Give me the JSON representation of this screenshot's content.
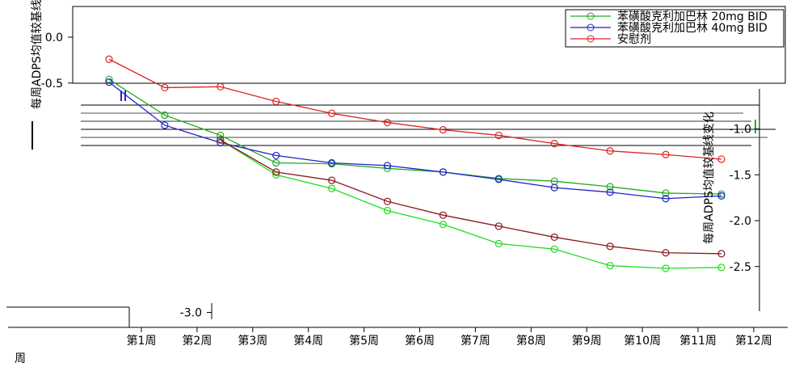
{
  "chart_data": {
    "type": "line",
    "title": "",
    "xlabel": "周",
    "ylabel": "每周ADPS均值较基线变化",
    "ylim": [
      -3.0,
      0.35
    ],
    "yticks": [
      0.0,
      -0.5,
      -1.0,
      -1.5,
      -2.0,
      -2.5,
      -3.0
    ],
    "ytick_labels": [
      "0.0",
      "-0.5",
      "-1.0",
      "-1.5",
      "-2.0",
      "-2.5",
      "-3.0"
    ],
    "legend_position": "top-right",
    "series": [
      {
        "name": "苯磺酸克利加巴林 20mg BID",
        "color": "#22aa22",
        "x": [
          1,
          2,
          3,
          4,
          5,
          6,
          7,
          8,
          9,
          10,
          11,
          12
        ],
        "values": [
          -0.46,
          -0.85,
          -1.07,
          -1.37,
          -1.38,
          -1.43,
          -1.47,
          -1.54,
          -1.57,
          -1.63,
          -1.7,
          -1.71
        ]
      },
      {
        "name": "苯磺酸克利加巴林 40mg BID",
        "color": "#2222cc",
        "x": [
          1,
          2,
          3,
          4,
          5,
          6,
          7,
          8,
          9,
          10,
          11,
          12
        ],
        "values": [
          -0.49,
          -0.96,
          -1.15,
          -1.29,
          -1.37,
          -1.4,
          -1.47,
          -1.55,
          -1.64,
          -1.69,
          -1.76,
          -1.73
        ]
      },
      {
        "name": "安慰剂",
        "color": "#dd2222",
        "x": [
          1,
          2,
          3,
          4,
          5,
          6,
          7,
          8,
          9,
          10,
          11,
          12
        ],
        "values": [
          -0.24,
          -0.55,
          -0.54,
          -0.7,
          -0.83,
          -0.93,
          -1.01,
          -1.07,
          -1.16,
          -1.24,
          -1.28,
          -1.33
        ]
      },
      {
        "name": "",
        "color": "#22dd22",
        "x": [
          3,
          4,
          5,
          6,
          7,
          8,
          9,
          10,
          11,
          12
        ],
        "values": [
          -1.12,
          -1.5,
          -1.65,
          -1.89,
          -2.04,
          -2.25,
          -2.31,
          -2.49,
          -2.52,
          -2.51
        ]
      },
      {
        "name": "",
        "color": "#8b1a1a",
        "x": [
          3,
          4,
          5,
          6,
          7,
          8,
          9,
          10,
          11,
          12
        ],
        "values": [
          -1.12,
          -1.47,
          -1.56,
          -1.79,
          -1.94,
          -2.06,
          -2.18,
          -2.28,
          -2.35,
          -2.36
        ]
      }
    ],
    "x_tick_texts": [
      "第1周",
      "第2周",
      "第3周",
      "第4周",
      "第5周",
      "第6周",
      "第7周",
      "第8周",
      "第9周",
      "第10周",
      "第11周",
      "第12周"
    ]
  }
}
